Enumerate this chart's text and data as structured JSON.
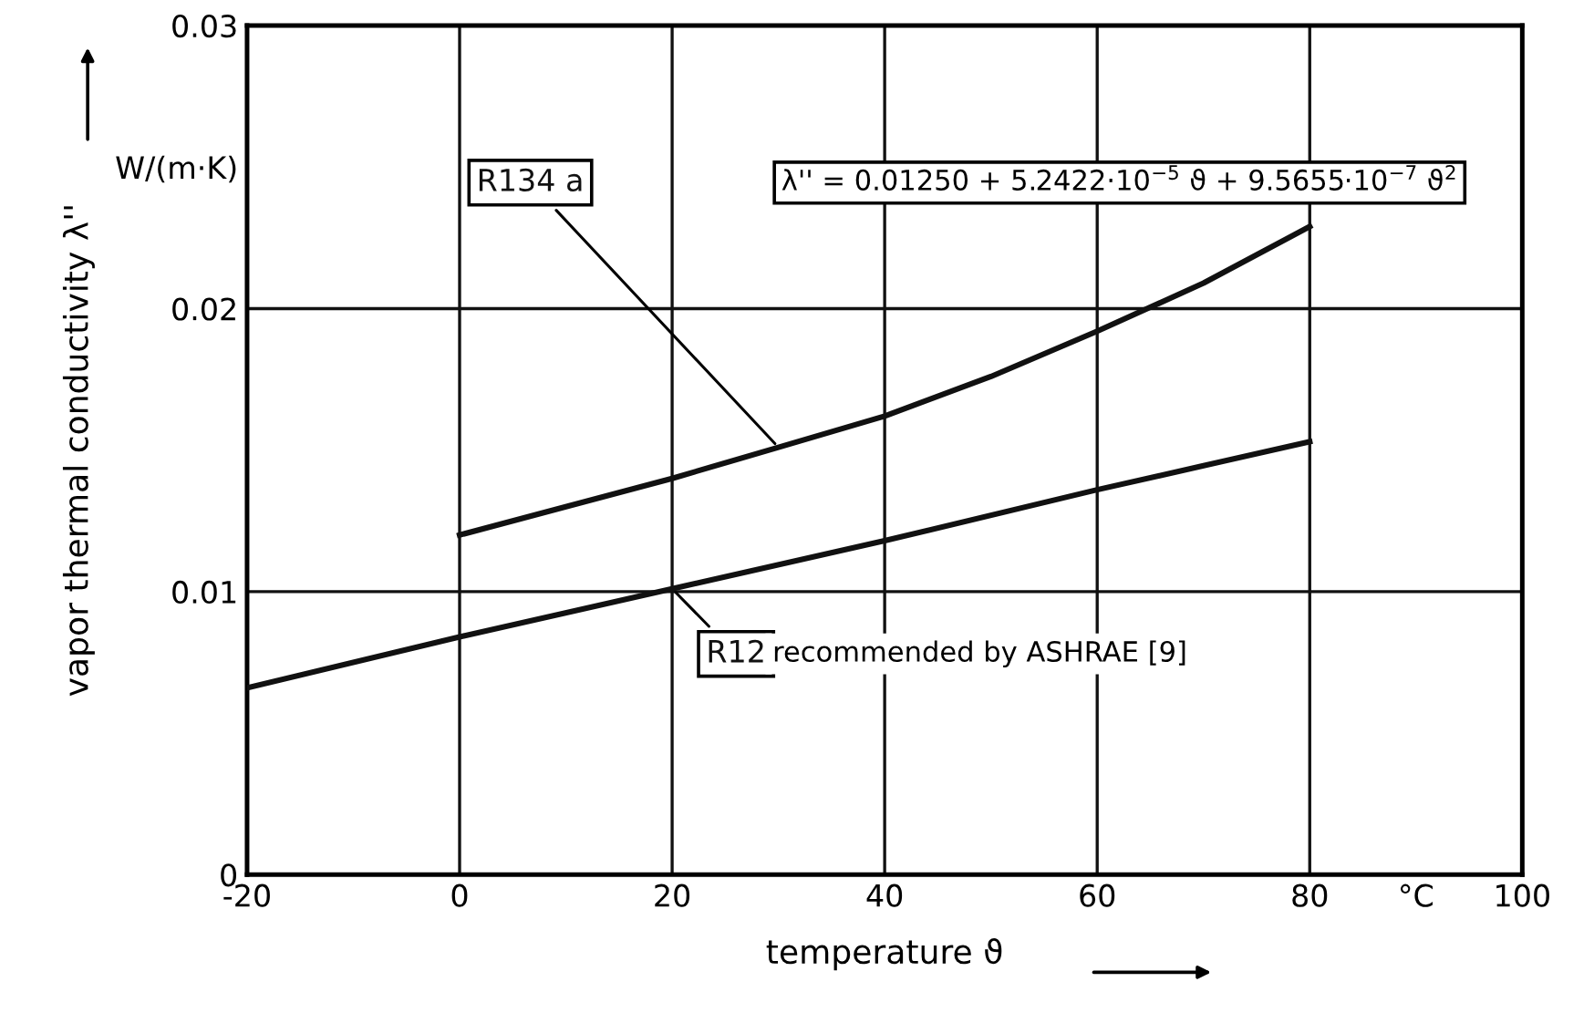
{
  "chart_data": {
    "type": "line",
    "xlabel": "temperature ϑ",
    "ylabel": "vapor thermal conductivity λ''",
    "xlim": [
      -20,
      100
    ],
    "ylim": [
      0,
      0.03
    ],
    "xticks": [
      -20,
      0,
      20,
      40,
      60,
      80,
      {
        "value": 90,
        "label": "°C"
      },
      100
    ],
    "yticks": [
      0,
      0.01,
      0.02,
      {
        "value": 0.025,
        "label": "W/(m·K)"
      },
      0.03
    ],
    "grid": true,
    "legend": false,
    "line_style": "solid",
    "marker": "none",
    "series": [
      {
        "name": "R134 a",
        "color": "#111111",
        "x": [
          0,
          10,
          20,
          30,
          40,
          50,
          60,
          70,
          80
        ],
        "values": [
          0.012,
          0.013,
          0.014,
          0.0151,
          0.0162,
          0.0176,
          0.0192,
          0.0209,
          0.0229
        ]
      },
      {
        "name": "R12",
        "color": "#111111",
        "x": [
          -20,
          0,
          20,
          40,
          60,
          80
        ],
        "values": [
          0.0066,
          0.0084,
          0.0101,
          0.0118,
          0.0136,
          0.0153
        ]
      }
    ],
    "annotations": [
      "λ'' = 0.01250 + 5.2422·10$^{−5}$ ϑ + 9.5655·10$^{−7}$ ϑ$^{2}$",
      "recommended by ASHRAE [9]"
    ]
  }
}
